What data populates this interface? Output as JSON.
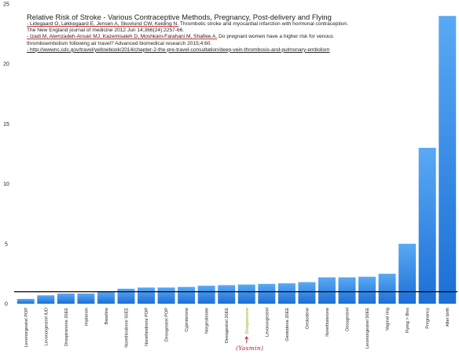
{
  "annotations": {
    "title": "Relative Risk of Stroke - Various Contraceptive Methods, Pregnancy, Post-delivery and Flying",
    "ref1_authors": "- Lidegaard O, Løkkegaard E, Jensen A, Skovlund CW, Keiding N.",
    "ref1_rest": "Thrombotic stroke and myocardial infarction with hormonal contraception. The New England journal of medicine 2012 Jun 14;366(24):2257-66.",
    "ref2_authors": "- Izadi M, Alemzadeh-Ansari MJ, Kazemisaleh D, Moshkani-Farahani M, Shafiee A.",
    "ref2_rest": "Do pregnant women have a higher risk for venous thromboembolism following air travel? Advanced biomedical research 2015;4:60.",
    "ref3": "- http://wwwnc.cdc.gov/travel/yellowbook/2014/chapter-2-the-pre-travel-consultation/deep-vein-thrombosis-and-pulmonary-embolism",
    "handwritten_note": "(Yasmin)",
    "highlight_color": "#8ea21a",
    "handwriting_color": "#b01818"
  },
  "chart_data": {
    "type": "bar",
    "categories": [
      "Levonorgestrel POP",
      "Levonorgestrel IUD",
      "Drospirenone 20EE",
      "Implanon",
      "Baseline",
      "Norethindrone 50EE",
      "Norethindrone POP",
      "Desogestrel POP",
      "Cyproterone",
      "Norgestimate",
      "Desogestrel 20EE",
      "Drospirenone",
      "Levonorgestrel",
      "Gestodene 20EE",
      "Gestodene",
      "Norethisterone",
      "Desogestrel",
      "Levonorgestrel 50EE",
      "Vaginal ring",
      "Flying > 8hrs",
      "Pregnancy",
      "After birth"
    ],
    "values": [
      0.4,
      0.7,
      0.85,
      0.85,
      1.0,
      1.25,
      1.35,
      1.35,
      1.4,
      1.5,
      1.55,
      1.6,
      1.65,
      1.7,
      1.8,
      2.2,
      2.2,
      2.25,
      2.5,
      5.0,
      13.0,
      24.0
    ],
    "highlighted_category": "Drospirenone",
    "reference_line": 1,
    "ylim": [
      0,
      25
    ],
    "yticks": [
      0,
      5,
      10,
      15,
      20,
      25
    ],
    "bar_color_top": "#5aa9f5",
    "bar_color_bottom": "#1c6fd6",
    "grid": false
  }
}
